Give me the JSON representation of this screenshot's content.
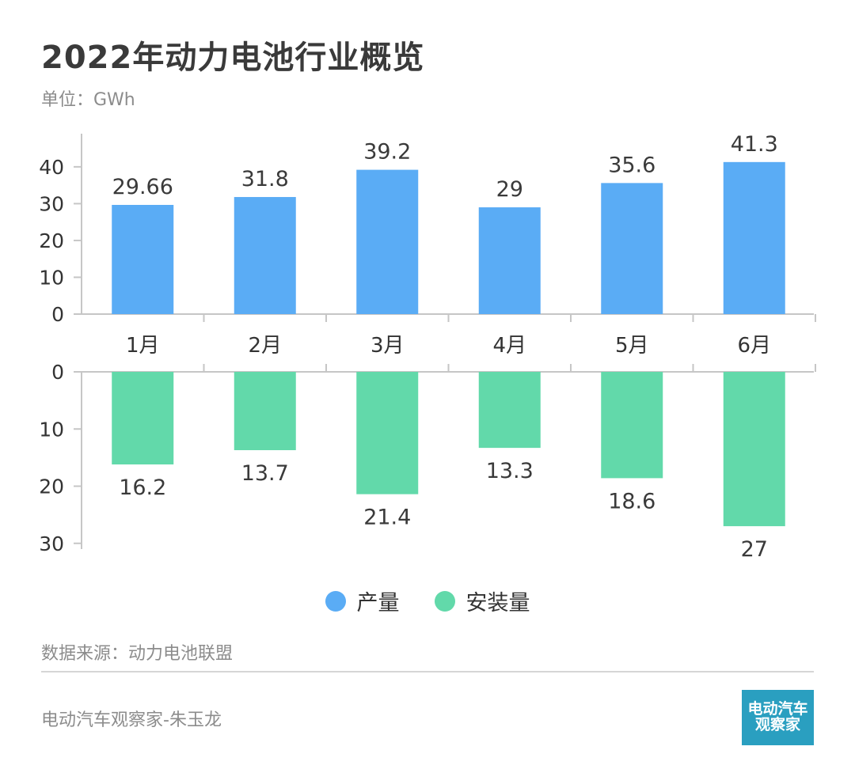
{
  "header": {
    "title": "2022年动力电池行业概览",
    "unit": "单位：GWh"
  },
  "chart_data": {
    "type": "bar",
    "title": "2022年动力电池行业概览",
    "unit": "GWh",
    "categories": [
      "1月",
      "2月",
      "3月",
      "4月",
      "5月",
      "6月"
    ],
    "series": [
      {
        "name": "产量",
        "values": [
          29.66,
          31.8,
          39.2,
          29,
          35.6,
          41.3
        ],
        "value_labels": [
          "29.66",
          "31.8",
          "39.2",
          "29",
          "35.6",
          "41.3"
        ],
        "color": "#5aacf5",
        "direction": "up"
      },
      {
        "name": "安装量",
        "values": [
          16.2,
          13.7,
          21.4,
          13.3,
          18.6,
          27
        ],
        "value_labels": [
          "16.2",
          "13.7",
          "21.4",
          "13.3",
          "18.6",
          "27"
        ],
        "color": "#62d9aa",
        "direction": "down"
      }
    ],
    "top_axis": {
      "ylim": [
        0,
        49
      ],
      "ticks": [
        0,
        10,
        20,
        30,
        40
      ]
    },
    "bottom_axis": {
      "ylim": [
        0,
        31
      ],
      "ticks": [
        0,
        10,
        20,
        30
      ]
    },
    "grid": false,
    "legend": "bottom-center"
  },
  "legend": {
    "items": [
      {
        "label": "产量",
        "color": "#5aacf5"
      },
      {
        "label": "安装量",
        "color": "#62d9aa"
      }
    ]
  },
  "footer": {
    "source": "数据来源：动力电池联盟",
    "author": "电动汽车观察家-朱玉龙",
    "logo_line1": "电动汽车",
    "logo_line2": "观察家"
  }
}
